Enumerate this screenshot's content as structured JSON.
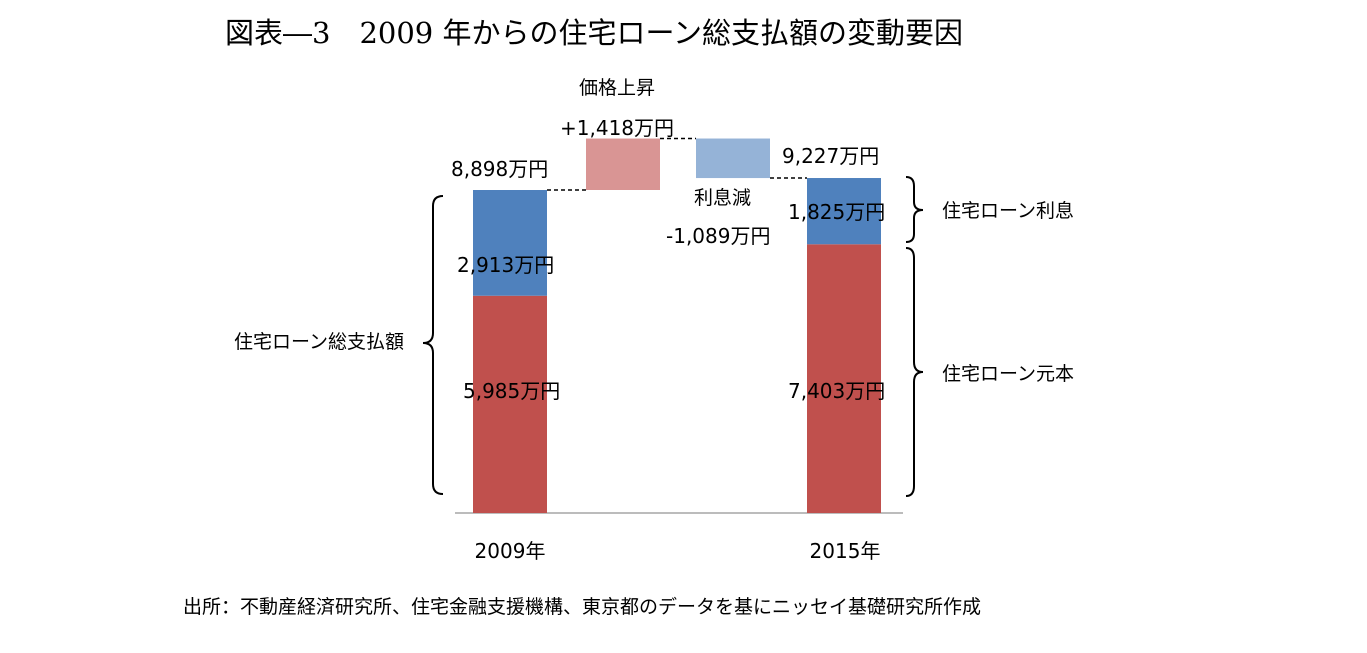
{
  "title": "図表―3　2009 年からの住宅ローン総支払額の変動要因",
  "source": "出所：不動産経済研究所、住宅金融支援機構、東京都のデータを基にニッセイ基礎研究所作成",
  "chart_data": {
    "type": "bar",
    "variant": "waterfall-stacked",
    "unit": "万円",
    "categories": [
      "2009年",
      "2015年"
    ],
    "series": [
      {
        "name": "住宅ローン元本",
        "values": [
          5985,
          7403
        ],
        "labels": [
          "5,985万円",
          "7,403万円"
        ],
        "color": "#c0504d"
      },
      {
        "name": "住宅ローン利息",
        "values": [
          2913,
          1825
        ],
        "labels": [
          "2,913万円",
          "1,825万円"
        ],
        "color": "#4f81bd"
      }
    ],
    "totals": [
      8898,
      9227
    ],
    "total_labels": [
      "8,898万円",
      "9,227万円"
    ],
    "steps": [
      {
        "name": "価格上昇",
        "value": 1418,
        "label": "+1,418万円",
        "color": "#d99594"
      },
      {
        "name": "利息減",
        "value": -1089,
        "label": "-1,089万円",
        "color": "#95b3d7"
      }
    ],
    "brackets": {
      "total": "住宅ローン総支払額",
      "interest": "住宅ローン利息",
      "principal": "住宅ローン元本"
    },
    "ylim": [
      0,
      10500
    ],
    "grid": false,
    "legend": "none"
  }
}
